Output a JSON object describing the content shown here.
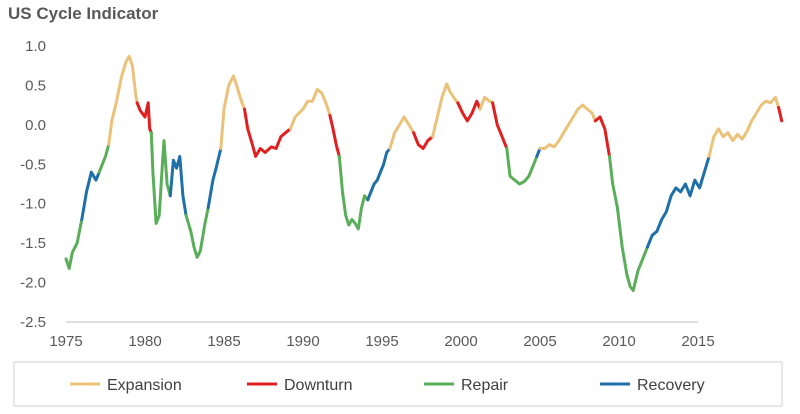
{
  "chart_data": {
    "type": "line",
    "title": "US Cycle Indicator",
    "xlabel": "",
    "ylabel": "",
    "xlim": [
      1975,
      2019
    ],
    "ylim": [
      -2.5,
      1.0
    ],
    "x_ticks": [
      1975,
      1980,
      1985,
      1990,
      1995,
      2000,
      2005,
      2010,
      2015
    ],
    "y_ticks": [
      1.0,
      0.5,
      0.0,
      -0.5,
      -1.0,
      -1.5,
      -2.0,
      -2.5
    ],
    "y_tick_labels": [
      "1.0",
      "0.5",
      "0.0",
      "-0.5",
      "-1.0",
      "-1.5",
      "-2.0",
      "-2.5"
    ],
    "grid": false,
    "legend_position": "bottom",
    "phases": [
      {
        "key": "expansion",
        "name": "Expansion",
        "color": "#EBC27A"
      },
      {
        "key": "downturn",
        "name": "Downturn",
        "color": "#E02020"
      },
      {
        "key": "repair",
        "name": "Repair",
        "color": "#5AAE5A"
      },
      {
        "key": "recovery",
        "name": "Recovery",
        "color": "#1F6FA8"
      }
    ],
    "segments": [
      {
        "phase": "repair",
        "points": [
          [
            1975.0,
            -1.7
          ],
          [
            1975.2,
            -1.82
          ],
          [
            1975.4,
            -1.62
          ],
          [
            1975.7,
            -1.5
          ],
          [
            1976.0,
            -1.2
          ]
        ]
      },
      {
        "phase": "recovery",
        "points": [
          [
            1976.0,
            -1.2
          ],
          [
            1976.3,
            -0.85
          ],
          [
            1976.6,
            -0.6
          ],
          [
            1976.9,
            -0.7
          ],
          [
            1977.1,
            -0.6
          ]
        ]
      },
      {
        "phase": "repair",
        "points": [
          [
            1977.1,
            -0.6
          ],
          [
            1977.3,
            -0.5
          ],
          [
            1977.5,
            -0.4
          ],
          [
            1977.7,
            -0.25
          ]
        ]
      },
      {
        "phase": "expansion",
        "points": [
          [
            1977.7,
            -0.25
          ],
          [
            1977.9,
            0.05
          ],
          [
            1978.2,
            0.3
          ],
          [
            1978.5,
            0.6
          ],
          [
            1978.8,
            0.8
          ],
          [
            1979.0,
            0.87
          ],
          [
            1979.2,
            0.75
          ],
          [
            1979.4,
            0.4
          ],
          [
            1979.5,
            0.28
          ]
        ]
      },
      {
        "phase": "downturn",
        "points": [
          [
            1979.5,
            0.28
          ],
          [
            1979.7,
            0.18
          ],
          [
            1980.0,
            0.1
          ],
          [
            1980.2,
            0.28
          ],
          [
            1980.3,
            -0.05
          ],
          [
            1980.4,
            -0.1
          ]
        ]
      },
      {
        "phase": "repair",
        "points": [
          [
            1980.4,
            -0.1
          ],
          [
            1980.5,
            -0.6
          ],
          [
            1980.7,
            -1.25
          ],
          [
            1980.9,
            -1.15
          ],
          [
            1981.1,
            -0.5
          ],
          [
            1981.2,
            -0.2
          ],
          [
            1981.4,
            -0.75
          ],
          [
            1981.6,
            -0.9
          ]
        ]
      },
      {
        "phase": "recovery",
        "points": [
          [
            1981.6,
            -0.9
          ],
          [
            1981.8,
            -0.45
          ],
          [
            1982.0,
            -0.55
          ],
          [
            1982.2,
            -0.4
          ],
          [
            1982.4,
            -0.9
          ],
          [
            1982.6,
            -1.15
          ]
        ]
      },
      {
        "phase": "repair",
        "points": [
          [
            1982.6,
            -1.15
          ],
          [
            1982.9,
            -1.35
          ],
          [
            1983.1,
            -1.55
          ],
          [
            1983.3,
            -1.68
          ],
          [
            1983.5,
            -1.6
          ],
          [
            1983.8,
            -1.25
          ],
          [
            1984.0,
            -1.05
          ]
        ]
      },
      {
        "phase": "recovery",
        "points": [
          [
            1984.0,
            -1.05
          ],
          [
            1984.3,
            -0.7
          ],
          [
            1984.5,
            -0.55
          ],
          [
            1984.8,
            -0.3
          ]
        ]
      },
      {
        "phase": "expansion",
        "points": [
          [
            1984.8,
            -0.3
          ],
          [
            1985.0,
            0.2
          ],
          [
            1985.3,
            0.5
          ],
          [
            1985.6,
            0.62
          ],
          [
            1985.8,
            0.5
          ],
          [
            1986.1,
            0.3
          ],
          [
            1986.3,
            0.2
          ]
        ]
      },
      {
        "phase": "downturn",
        "points": [
          [
            1986.3,
            0.2
          ],
          [
            1986.5,
            -0.05
          ],
          [
            1986.8,
            -0.25
          ],
          [
            1987.0,
            -0.4
          ],
          [
            1987.3,
            -0.3
          ],
          [
            1987.6,
            -0.35
          ],
          [
            1988.0,
            -0.28
          ],
          [
            1988.3,
            -0.3
          ],
          [
            1988.6,
            -0.15
          ],
          [
            1988.9,
            -0.1
          ],
          [
            1989.2,
            -0.05
          ]
        ]
      },
      {
        "phase": "expansion",
        "points": [
          [
            1989.2,
            -0.05
          ],
          [
            1989.5,
            0.1
          ],
          [
            1990.0,
            0.2
          ],
          [
            1990.3,
            0.3
          ],
          [
            1990.6,
            0.3
          ],
          [
            1990.9,
            0.45
          ],
          [
            1991.2,
            0.4
          ],
          [
            1991.5,
            0.25
          ],
          [
            1991.7,
            0.12
          ]
        ]
      },
      {
        "phase": "downturn",
        "points": [
          [
            1991.7,
            0.12
          ],
          [
            1991.9,
            -0.05
          ],
          [
            1992.1,
            -0.25
          ],
          [
            1992.3,
            -0.4
          ]
        ]
      },
      {
        "phase": "repair",
        "points": [
          [
            1992.3,
            -0.4
          ],
          [
            1992.5,
            -0.85
          ],
          [
            1992.7,
            -1.15
          ],
          [
            1992.9,
            -1.27
          ],
          [
            1993.1,
            -1.2
          ],
          [
            1993.3,
            -1.25
          ],
          [
            1993.5,
            -1.32
          ],
          [
            1993.7,
            -1.05
          ],
          [
            1993.9,
            -0.9
          ],
          [
            1994.1,
            -0.95
          ]
        ]
      },
      {
        "phase": "recovery",
        "points": [
          [
            1994.1,
            -0.95
          ],
          [
            1994.3,
            -0.85
          ],
          [
            1994.5,
            -0.75
          ],
          [
            1994.7,
            -0.7
          ],
          [
            1994.9,
            -0.6
          ],
          [
            1995.1,
            -0.5
          ],
          [
            1995.3,
            -0.35
          ],
          [
            1995.5,
            -0.3
          ]
        ]
      },
      {
        "phase": "expansion",
        "points": [
          [
            1995.5,
            -0.3
          ],
          [
            1995.8,
            -0.1
          ],
          [
            1996.1,
            0.0
          ],
          [
            1996.4,
            0.1
          ],
          [
            1996.7,
            0.0
          ],
          [
            1997.0,
            -0.1
          ]
        ]
      },
      {
        "phase": "downturn",
        "points": [
          [
            1997.0,
            -0.1
          ],
          [
            1997.3,
            -0.25
          ],
          [
            1997.6,
            -0.3
          ],
          [
            1997.9,
            -0.2
          ],
          [
            1998.2,
            -0.15
          ]
        ]
      },
      {
        "phase": "expansion",
        "points": [
          [
            1998.2,
            -0.15
          ],
          [
            1998.5,
            0.1
          ],
          [
            1998.8,
            0.35
          ],
          [
            1999.1,
            0.52
          ],
          [
            1999.3,
            0.42
          ],
          [
            1999.6,
            0.33
          ],
          [
            1999.8,
            0.28
          ]
        ]
      },
      {
        "phase": "downturn",
        "points": [
          [
            1999.8,
            0.28
          ],
          [
            2000.1,
            0.15
          ],
          [
            2000.4,
            0.05
          ],
          [
            2000.7,
            0.15
          ],
          [
            2001.0,
            0.3
          ],
          [
            2001.2,
            0.2
          ]
        ]
      },
      {
        "phase": "expansion",
        "points": [
          [
            2001.2,
            0.2
          ],
          [
            2001.5,
            0.35
          ],
          [
            2001.8,
            0.3
          ],
          [
            2002.0,
            0.28
          ]
        ]
      },
      {
        "phase": "downturn",
        "points": [
          [
            2002.0,
            0.28
          ],
          [
            2002.3,
            0.0
          ],
          [
            2002.6,
            -0.15
          ],
          [
            2002.9,
            -0.3
          ]
        ]
      },
      {
        "phase": "repair",
        "points": [
          [
            2002.9,
            -0.3
          ],
          [
            2003.1,
            -0.65
          ],
          [
            2003.4,
            -0.7
          ],
          [
            2003.7,
            -0.75
          ],
          [
            2004.0,
            -0.72
          ],
          [
            2004.3,
            -0.65
          ],
          [
            2004.6,
            -0.5
          ],
          [
            2004.8,
            -0.4
          ]
        ]
      },
      {
        "phase": "recovery",
        "points": [
          [
            2004.8,
            -0.4
          ],
          [
            2005.0,
            -0.3
          ]
        ]
      },
      {
        "phase": "expansion",
        "points": [
          [
            2005.0,
            -0.3
          ],
          [
            2005.3,
            -0.3
          ],
          [
            2005.6,
            -0.25
          ],
          [
            2005.9,
            -0.28
          ],
          [
            2006.2,
            -0.2
          ],
          [
            2006.5,
            -0.1
          ],
          [
            2006.8,
            0.0
          ],
          [
            2007.1,
            0.1
          ],
          [
            2007.4,
            0.2
          ],
          [
            2007.7,
            0.25
          ],
          [
            2008.0,
            0.2
          ],
          [
            2008.3,
            0.15
          ],
          [
            2008.5,
            0.05
          ]
        ]
      },
      {
        "phase": "downturn",
        "points": [
          [
            2008.5,
            0.05
          ],
          [
            2008.8,
            0.1
          ],
          [
            2009.1,
            -0.05
          ],
          [
            2009.4,
            -0.4
          ]
        ]
      },
      {
        "phase": "repair",
        "points": [
          [
            2009.4,
            -0.4
          ],
          [
            2009.6,
            -0.75
          ],
          [
            2009.9,
            -1.05
          ],
          [
            2010.2,
            -1.55
          ],
          [
            2010.5,
            -1.9
          ],
          [
            2010.7,
            -2.05
          ],
          [
            2010.9,
            -2.1
          ],
          [
            2011.2,
            -1.85
          ],
          [
            2011.5,
            -1.7
          ],
          [
            2011.8,
            -1.55
          ]
        ]
      },
      {
        "phase": "recovery",
        "points": [
          [
            2011.8,
            -1.55
          ],
          [
            2012.1,
            -1.4
          ],
          [
            2012.4,
            -1.35
          ],
          [
            2012.7,
            -1.2
          ],
          [
            2013.0,
            -1.1
          ],
          [
            2013.3,
            -0.9
          ],
          [
            2013.6,
            -0.8
          ],
          [
            2013.9,
            -0.85
          ],
          [
            2014.2,
            -0.75
          ],
          [
            2014.5,
            -0.9
          ],
          [
            2014.8,
            -0.7
          ],
          [
            2015.1,
            -0.8
          ],
          [
            2015.4,
            -0.6
          ],
          [
            2015.7,
            -0.4
          ]
        ]
      },
      {
        "phase": "expansion",
        "points": [
          [
            2015.7,
            -0.4
          ],
          [
            2016.0,
            -0.15
          ],
          [
            2016.3,
            -0.05
          ],
          [
            2016.6,
            -0.15
          ],
          [
            2016.9,
            -0.1
          ],
          [
            2017.2,
            -0.2
          ],
          [
            2017.5,
            -0.12
          ],
          [
            2017.8,
            -0.18
          ],
          [
            2018.1,
            -0.08
          ],
          [
            2018.4,
            0.05
          ],
          [
            2018.7,
            0.15
          ],
          [
            2019.0,
            0.25
          ],
          [
            2019.3,
            0.3
          ],
          [
            2019.6,
            0.28
          ],
          [
            2019.9,
            0.35
          ],
          [
            2020.1,
            0.22
          ]
        ]
      },
      {
        "phase": "downturn",
        "points": [
          [
            2020.1,
            0.22
          ],
          [
            2020.3,
            0.05
          ]
        ]
      }
    ]
  }
}
